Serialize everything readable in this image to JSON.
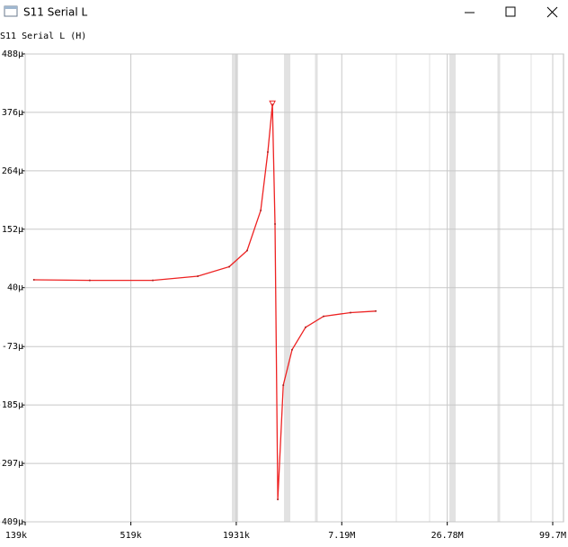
{
  "window": {
    "title": "S11 Serial L"
  },
  "chart_data": {
    "type": "line",
    "title": "S11 Serial L (H)",
    "color": "#ee2222",
    "grid": true,
    "xscale": "log",
    "x": [
      155000,
      311000,
      682000,
      1195000,
      1768000,
      2210000,
      2620000,
      2860000,
      3030000,
      3130000,
      3240000,
      3470000,
      3870000,
      4580000,
      5730000,
      8020000,
      10980000
    ],
    "values": [
      55,
      54,
      54,
      62,
      80,
      111,
      188,
      300,
      391,
      162,
      -366,
      -147,
      -79,
      -36,
      -15,
      -8,
      -5
    ],
    "xlim": [
      139000,
      99700000
    ],
    "xticks": [
      {
        "value": 139000,
        "label": "139k"
      },
      {
        "value": 519000,
        "label": "519k"
      },
      {
        "value": 1931000,
        "label": "1931k"
      },
      {
        "value": 7190000,
        "label": "7.19M"
      },
      {
        "value": 26780000,
        "label": "26.78M"
      },
      {
        "value": 99700000,
        "label": "99.7M"
      }
    ],
    "ylim": [
      -409,
      488
    ],
    "yticks": [
      {
        "value": 488,
        "label": "488μ"
      },
      {
        "value": 376,
        "label": "376μ"
      },
      {
        "value": 264,
        "label": "264μ"
      },
      {
        "value": 152,
        "label": "152μ"
      },
      {
        "value": 40,
        "label": "40μ"
      },
      {
        "value": -73,
        "label": "-73μ"
      },
      {
        "value": -185,
        "label": "-185μ"
      },
      {
        "value": -297,
        "label": "-297μ"
      },
      {
        "value": -409,
        "label": "-409μ"
      }
    ]
  }
}
